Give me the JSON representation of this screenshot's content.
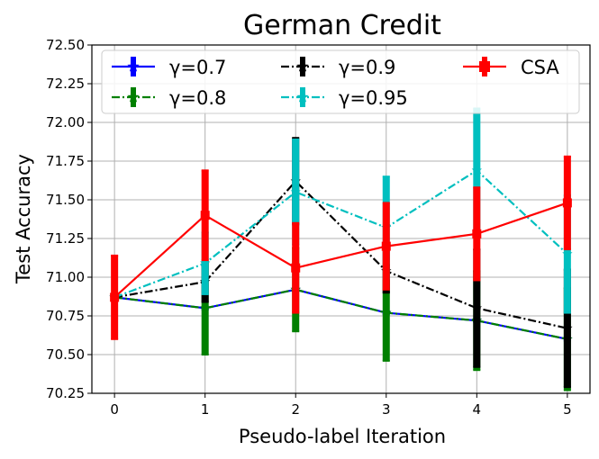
{
  "chart_data": {
    "type": "line",
    "title": "German Credit",
    "xlabel": "Pseudo-label Iteration",
    "ylabel": "Test Accuracy",
    "x": [
      0,
      1,
      2,
      3,
      4,
      5
    ],
    "xticks": [
      "0",
      "1",
      "2",
      "3",
      "4",
      "5"
    ],
    "xlim": [
      -0.25,
      5.25
    ],
    "ylim": [
      70.25,
      72.5
    ],
    "yticks": [
      "70.25",
      "70.50",
      "70.75",
      "71.00",
      "71.25",
      "71.50",
      "71.75",
      "72.00",
      "72.25",
      "72.50"
    ],
    "grid": true,
    "legend_position": "top",
    "series": [
      {
        "name": "γ=0.7",
        "color": "#0000ff",
        "dash": "solid",
        "marker": "star",
        "values": [
          70.87,
          70.8,
          70.92,
          70.77,
          70.72,
          70.6
        ],
        "errors": [
          0.01,
          0.01,
          0.01,
          0.01,
          0.01,
          0.01
        ]
      },
      {
        "name": "γ=0.8",
        "color": "#008000",
        "dash": "dashdot",
        "marker": "star",
        "values": [
          70.87,
          70.8,
          70.92,
          70.77,
          70.72,
          70.6
        ],
        "errors": [
          0.01,
          0.3,
          0.27,
          0.31,
          0.32,
          0.33
        ]
      },
      {
        "name": "γ=0.9",
        "color": "#000000",
        "dash": "dashdot",
        "marker": "star",
        "values": [
          70.87,
          70.97,
          71.62,
          71.04,
          70.8,
          70.67
        ],
        "errors": [
          0.01,
          0.13,
          0.28,
          0.14,
          0.38,
          0.38
        ]
      },
      {
        "name": "γ=0.95",
        "color": "#00bfbf",
        "dash": "dashdot",
        "marker": "star",
        "values": [
          70.87,
          71.09,
          71.55,
          71.32,
          71.69,
          71.15
        ],
        "errors": [
          0.01,
          0.2,
          0.34,
          0.33,
          0.4,
          0.38
        ]
      },
      {
        "name": "CSA",
        "color": "#ff0000",
        "dash": "solid",
        "marker": "square",
        "values": [
          70.87,
          71.4,
          71.06,
          71.2,
          71.28,
          71.48
        ],
        "errors": [
          0.27,
          0.29,
          0.29,
          0.28,
          0.3,
          0.3
        ]
      }
    ]
  }
}
